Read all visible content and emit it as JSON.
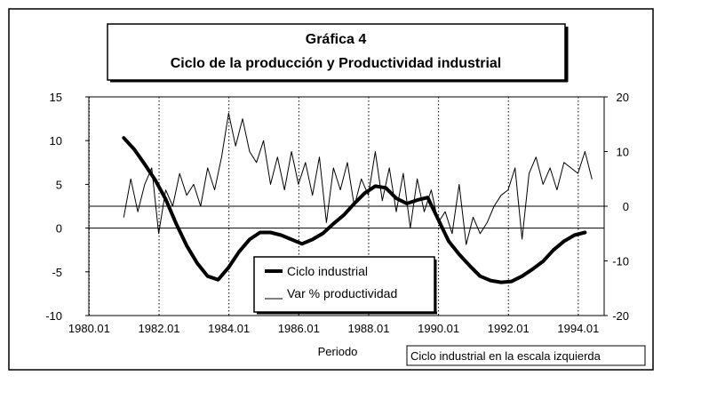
{
  "chart_data": {
    "type": "line",
    "title": "Gráfica 4",
    "subtitle": "Ciclo de la producción y Productividad industrial",
    "xlabel": "Periodo",
    "x_tick_labels": [
      "1980.01",
      "1982.01",
      "1984.01",
      "1986.01",
      "1988.01",
      "1990.01",
      "1992.01",
      "1994.01"
    ],
    "x_range": [
      1980.0,
      1994.75
    ],
    "y_left": {
      "ticks": [
        "15",
        "10",
        "5",
        "0",
        "-5",
        "-10"
      ],
      "range": [
        -10,
        15
      ]
    },
    "y_right": {
      "ticks": [
        "20",
        "10",
        "0",
        "-10",
        "-20"
      ],
      "range": [
        -20,
        20
      ]
    },
    "note": "Ciclo industrial en la escala izquierda",
    "grid": "vertical dotted lines at each x tick",
    "legend_position": "bottom-center",
    "series": [
      {
        "name": "Ciclo industrial",
        "axis": "left",
        "style": "thick",
        "x": [
          1981.0,
          1981.3,
          1981.6,
          1981.9,
          1982.2,
          1982.5,
          1982.8,
          1983.1,
          1983.4,
          1983.7,
          1984.0,
          1984.3,
          1984.6,
          1984.9,
          1985.2,
          1985.5,
          1985.8,
          1986.1,
          1986.4,
          1986.7,
          1987.0,
          1987.3,
          1987.6,
          1987.9,
          1988.2,
          1988.5,
          1988.8,
          1989.1,
          1989.4,
          1989.7,
          1990.0,
          1990.3,
          1990.6,
          1990.9,
          1991.2,
          1991.5,
          1991.8,
          1992.1,
          1992.4,
          1992.7,
          1993.0,
          1993.3,
          1993.6,
          1993.9,
          1994.2
        ],
        "values": [
          10.3,
          9.0,
          7.3,
          5.5,
          3.3,
          0.5,
          -2.0,
          -4.0,
          -5.5,
          -5.9,
          -4.5,
          -2.7,
          -1.3,
          -0.5,
          -0.5,
          -0.8,
          -1.3,
          -1.8,
          -1.3,
          -0.6,
          0.5,
          1.5,
          2.8,
          4.0,
          4.8,
          4.6,
          3.4,
          2.8,
          3.2,
          3.5,
          1.0,
          -1.5,
          -3.0,
          -4.3,
          -5.5,
          -6.0,
          -6.2,
          -6.1,
          -5.5,
          -4.7,
          -3.8,
          -2.5,
          -1.5,
          -0.8,
          -0.5
        ]
      },
      {
        "name": "Var % productividad",
        "axis": "right",
        "style": "thin",
        "x": [
          1981.0,
          1981.2,
          1981.4,
          1981.6,
          1981.8,
          1982.0,
          1982.2,
          1982.4,
          1982.6,
          1982.8,
          1983.0,
          1983.2,
          1983.4,
          1983.6,
          1983.8,
          1984.0,
          1984.2,
          1984.4,
          1984.6,
          1984.8,
          1985.0,
          1985.2,
          1985.4,
          1985.6,
          1985.8,
          1986.0,
          1986.2,
          1986.4,
          1986.6,
          1986.8,
          1987.0,
          1987.2,
          1987.4,
          1987.6,
          1987.8,
          1988.0,
          1988.2,
          1988.4,
          1988.6,
          1988.8,
          1989.0,
          1989.2,
          1989.4,
          1989.6,
          1989.8,
          1990.0,
          1990.2,
          1990.4,
          1990.6,
          1990.8,
          1991.0,
          1991.2,
          1991.4,
          1991.6,
          1991.8,
          1992.0,
          1992.2,
          1992.4,
          1992.6,
          1992.8,
          1993.0,
          1993.2,
          1993.4,
          1993.6,
          1993.8,
          1994.0,
          1994.2,
          1994.4
        ],
        "values": [
          -2,
          5,
          -1,
          4,
          7,
          -5,
          3,
          0,
          6,
          2,
          4,
          0,
          7,
          3,
          9,
          17,
          11,
          16,
          10,
          8,
          12,
          4,
          9,
          3,
          10,
          4,
          8,
          2,
          9,
          -3,
          7,
          3,
          8,
          0,
          5,
          2,
          10,
          1,
          7,
          -1,
          6,
          -4,
          5,
          -1,
          3,
          -3,
          -1,
          -5,
          4,
          -7,
          -2,
          -5,
          -3,
          0,
          2,
          3,
          7,
          -6,
          6,
          9,
          4,
          7,
          3,
          8,
          7,
          6,
          10,
          5
        ]
      }
    ]
  }
}
